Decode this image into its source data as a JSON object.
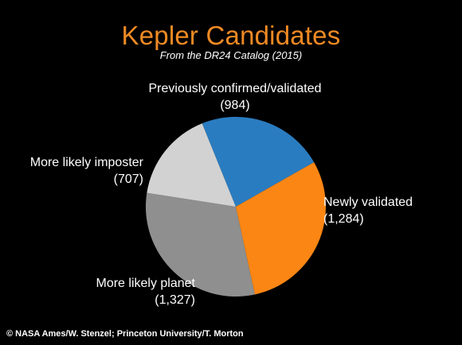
{
  "title": "Kepler Candidates",
  "subtitle": "From the DR24 Catalog (2015)",
  "credit": "© NASA Ames/W. Stenzel; Princeton University/T. Morton",
  "colors": {
    "title": "#f08a24",
    "background": "#000000",
    "text": "#ffffff"
  },
  "chart_data": {
    "type": "pie",
    "title": "Kepler Candidates",
    "subtitle": "From the DR24 Catalog (2015)",
    "slices": [
      {
        "label": "Previously confirmed/validated",
        "value": 984,
        "value_label": "(984)",
        "color": "#2a7cc0"
      },
      {
        "label": "Newly validated",
        "value": 1284,
        "value_label": "(1,284)",
        "color": "#fb8614"
      },
      {
        "label": "More likely planet",
        "value": 1327,
        "value_label": "(1,327)",
        "color": "#8f8f8f"
      },
      {
        "label": "More likely imposter",
        "value": 707,
        "value_label": "(707)",
        "color": "#d2d2d2"
      }
    ],
    "start_angle_deg": -112,
    "direction": "clockwise",
    "legend": "none"
  }
}
